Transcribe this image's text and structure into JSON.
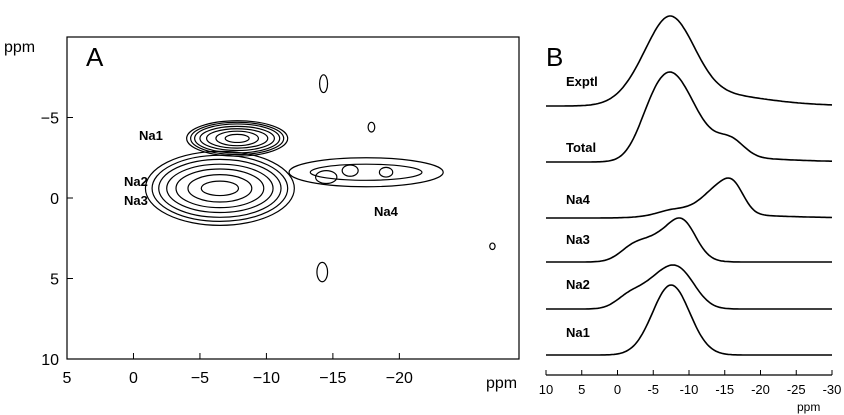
{
  "chart_data": [
    {
      "panel": "A",
      "type": "contour",
      "ylabel": "ppm",
      "xlabel": "ppm",
      "xlim": [
        5,
        -29
      ],
      "ylim": [
        -10,
        10
      ],
      "x_ticks": [
        "5",
        "0",
        "−5",
        "−10",
        "−15",
        "−20"
      ],
      "x_tick_values": [
        5,
        0,
        -5,
        -10,
        -15,
        -20
      ],
      "y_ticks": [
        "−5",
        "0",
        "5",
        "10"
      ],
      "y_tick_values": [
        -5,
        0,
        5,
        10
      ],
      "regions": [
        {
          "name": "Na1",
          "x_center": -7.2,
          "y_center": -3.7
        },
        {
          "name": "Na2",
          "x_center": -6.5,
          "y_center": -0.6
        },
        {
          "name": "Na3",
          "x_center": -6.5,
          "y_center": 0.0
        },
        {
          "name": "Na4",
          "x_center": -17.5,
          "y_center": -1.6
        }
      ],
      "contours": [
        {
          "cx": -7.8,
          "cy": -3.7,
          "rx": [
            3.8,
            3.5,
            3.2,
            2.8,
            2.3,
            1.6,
            0.9
          ],
          "ry": [
            1.1,
            1.0,
            0.9,
            0.75,
            0.6,
            0.45,
            0.25
          ]
        },
        {
          "cx": -6.5,
          "cy": -0.6,
          "rx": [
            5.6,
            5.1,
            4.6,
            4.0,
            3.3,
            2.4,
            1.4
          ],
          "ry": [
            2.3,
            2.05,
            1.8,
            1.5,
            1.2,
            0.85,
            0.45
          ]
        },
        {
          "cx": -17.5,
          "cy": -1.6,
          "rx": [
            5.8,
            4.2
          ],
          "ry": [
            0.9,
            0.5
          ]
        },
        {
          "cx": -14.5,
          "cy": -1.3,
          "rx": [
            0.8
          ],
          "ry": [
            0.4
          ]
        },
        {
          "cx": -16.3,
          "cy": -1.7,
          "rx": [
            0.6
          ],
          "ry": [
            0.35
          ]
        },
        {
          "cx": -19.0,
          "cy": -1.6,
          "rx": [
            0.5
          ],
          "ry": [
            0.3
          ]
        },
        {
          "cx": -14.3,
          "cy": -7.1,
          "rx": [
            0.3
          ],
          "ry": [
            0.55
          ]
        },
        {
          "cx": -17.9,
          "cy": -4.4,
          "rx": [
            0.25
          ],
          "ry": [
            0.3
          ]
        },
        {
          "cx": -14.2,
          "cy": 4.6,
          "rx": [
            0.4
          ],
          "ry": [
            0.6
          ]
        },
        {
          "cx": -27.0,
          "cy": 3.0,
          "rx": [
            0.2
          ],
          "ry": [
            0.2
          ]
        }
      ],
      "letter": "A",
      "peak_labels": [
        "Na1",
        "Na2",
        "Na3",
        "Na4"
      ]
    },
    {
      "panel": "B",
      "type": "line",
      "xlabel": "ppm",
      "xlim": [
        10,
        -30
      ],
      "x_ticks": [
        "10",
        "5",
        "0",
        "-5",
        "-10",
        "-15",
        "-20",
        "-25",
        "-30"
      ],
      "x_tick_values": [
        10,
        5,
        0,
        -5,
        -10,
        -15,
        -20,
        -25,
        -30
      ],
      "letter": "B",
      "series": [
        {
          "name": "Exptl",
          "peaks": [
            {
              "c": -6.5,
              "w": 3.6,
              "h": 1.0
            },
            {
              "c": -8.5,
              "w": 3.0,
              "h": 0.35
            },
            {
              "c": -14.0,
              "w": 6.0,
              "h": 0.08
            }
          ],
          "tail": 0.12
        },
        {
          "name": "Total",
          "peaks": [
            {
              "c": -7.6,
              "w": 2.9,
              "h": 1.0
            },
            {
              "c": -4.5,
              "w": 2.0,
              "h": 0.25
            },
            {
              "c": -16.0,
              "w": 1.8,
              "h": 0.17
            },
            {
              "c": -12.5,
              "w": 3.0,
              "h": 0.16
            }
          ],
          "tail": 0.08
        },
        {
          "name": "Na4",
          "peaks": [
            {
              "c": -14.0,
              "w": 2.0,
              "h": 0.75
            },
            {
              "c": -16.3,
              "w": 1.5,
              "h": 0.78
            },
            {
              "c": -10.0,
              "w": 4.0,
              "h": 0.2
            }
          ],
          "tail": 0.15
        },
        {
          "name": "Na3",
          "peaks": [
            {
              "c": -6.5,
              "w": 3.0,
              "h": 0.95
            },
            {
              "c": -9.3,
              "w": 1.8,
              "h": 0.9
            },
            {
              "c": -2.0,
              "w": 1.8,
              "h": 0.35
            }
          ],
          "tail": 0.0
        },
        {
          "name": "Na2",
          "peaks": [
            {
              "c": -5.8,
              "w": 2.6,
              "h": 0.95
            },
            {
              "c": -9.0,
              "w": 2.2,
              "h": 0.95
            },
            {
              "c": -1.5,
              "w": 1.8,
              "h": 0.35
            }
          ],
          "tail": 0.0
        },
        {
          "name": "Na1",
          "peaks": [
            {
              "c": -7.5,
              "w": 2.6,
              "h": 1.0
            }
          ],
          "tail": 0.0
        }
      ]
    }
  ]
}
